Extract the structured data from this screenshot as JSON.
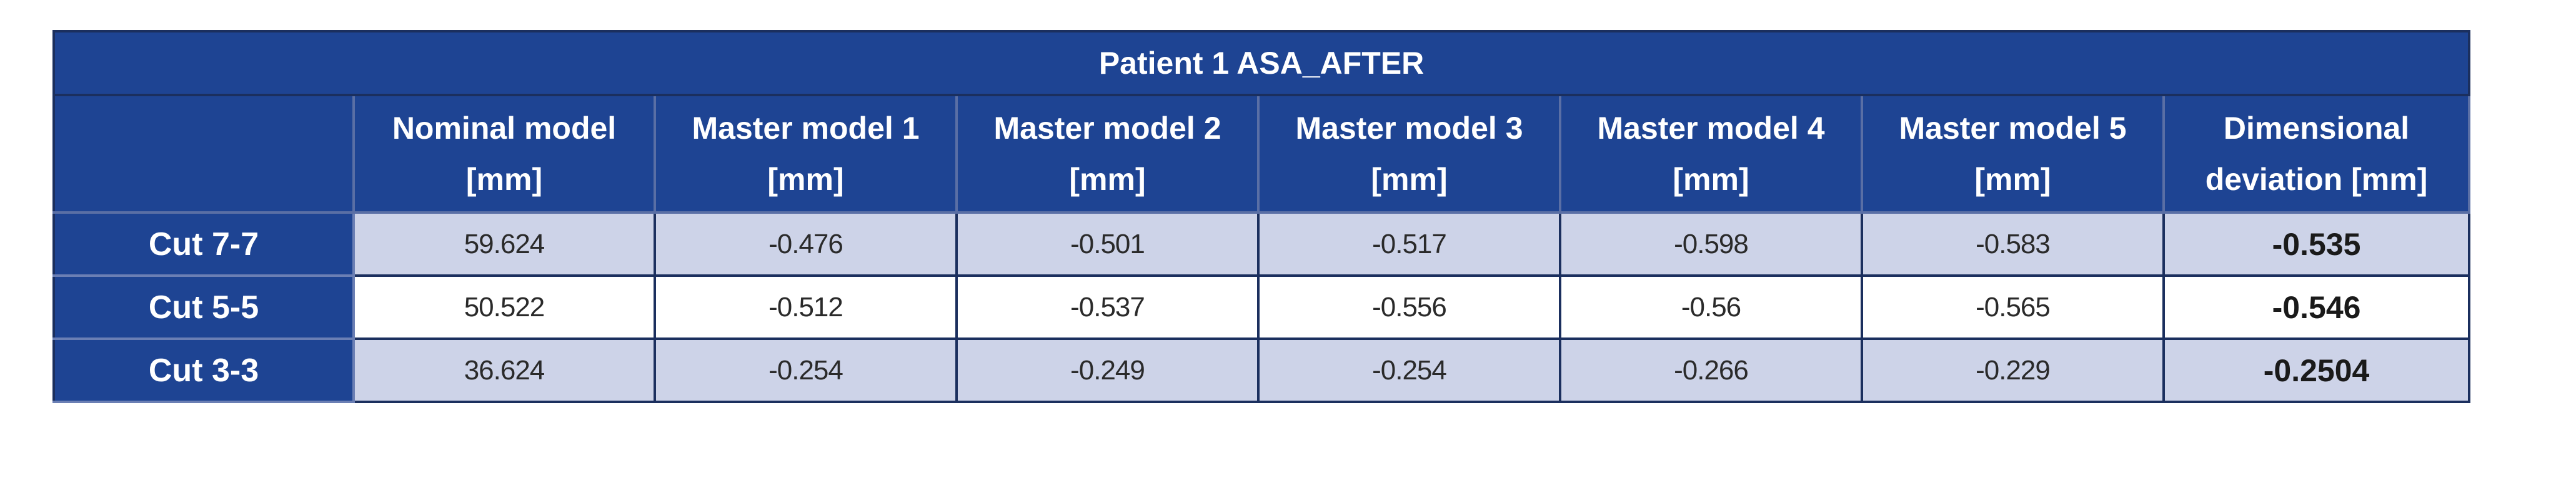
{
  "table": {
    "title": "Patient 1 ASA_AFTER",
    "headers": [
      {
        "line1": "",
        "line2": ""
      },
      {
        "line1": "Nominal model",
        "line2": "[mm]"
      },
      {
        "line1": "Master model 1",
        "line2": "[mm]"
      },
      {
        "line1": "Master model 2",
        "line2": "[mm]"
      },
      {
        "line1": "Master model 3",
        "line2": "[mm]"
      },
      {
        "line1": "Master model 4",
        "line2": "[mm]"
      },
      {
        "line1": "Master model 5",
        "line2": "[mm]"
      },
      {
        "line1": "Dimensional",
        "line2": "deviation [mm]"
      }
    ],
    "rows": [
      {
        "label": "Cut 7-7",
        "values": [
          "59.624",
          "-0.476",
          "-0.501",
          "-0.517",
          "-0.598",
          "-0.583"
        ],
        "deviation": "-0.535"
      },
      {
        "label": "Cut 5-5",
        "values": [
          "50.522",
          "-0.512",
          "-0.537",
          "-0.556",
          "-0.56",
          "-0.565"
        ],
        "deviation": "-0.546"
      },
      {
        "label": "Cut 3-3",
        "values": [
          "36.624",
          "-0.254",
          "-0.249",
          "-0.254",
          "-0.266",
          "-0.229"
        ],
        "deviation": "-0.2504"
      }
    ]
  },
  "colors": {
    "header_bg": "#1e4493",
    "header_text": "#ffffff",
    "shaded_row_bg": "#cdd3e8",
    "plain_row_bg": "#ffffff",
    "border": "#1b2f5e"
  }
}
